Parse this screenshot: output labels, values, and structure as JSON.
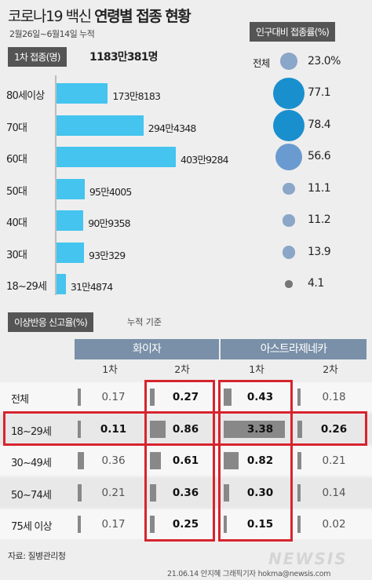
{
  "header": {
    "title_prefix": "코로나19 백신",
    "title_bold": "연령별 접종 현황",
    "period": "2월26일~6월14일 누적"
  },
  "dose1": {
    "label": "1차 접종(명)",
    "total": "1183만381명"
  },
  "rate": {
    "label": "인구대비 접종률(%)",
    "total_label": "전체",
    "total_value": "23.0%"
  },
  "reaction": {
    "label": "이상반응 신고율(%)",
    "note": "누적 기준",
    "vaccines": [
      "화이자",
      "아스트라제네카"
    ],
    "doses": [
      "1차",
      "2차",
      "1차",
      "2차"
    ]
  },
  "footer": {
    "source": "자료: 질병관리청",
    "credit": "21.06.14 안지혜 그래픽기자 hokma@newsis.com",
    "watermark": "NEWSIS"
  },
  "colors": {
    "bar": "#44c4ee",
    "dot_large": "#1a8fcd",
    "dot_mid": "#6a9bd0",
    "dot_small": "#8aa6c8",
    "dot_tiny": "#777777",
    "highlight_box": "#d6242e",
    "table_header": "#7a8fa8"
  },
  "chart_data": [
    {
      "type": "bar",
      "title": "1차 접종(명)",
      "categories": [
        "80세이상",
        "70대",
        "60대",
        "50대",
        "40대",
        "30대",
        "18~29세"
      ],
      "values": [
        1738183,
        2944348,
        4039284,
        954005,
        909358,
        930329,
        314874
      ],
      "value_labels": [
        "173만8183",
        "294만4348",
        "403만9284",
        "95만4005",
        "90만9358",
        "93만329",
        "31만4874"
      ]
    },
    {
      "type": "scatter",
      "title": "인구대비 접종률(%)",
      "categories": [
        "전체",
        "80세이상",
        "70대",
        "60대",
        "50대",
        "40대",
        "30대",
        "18~29세"
      ],
      "values": [
        23.0,
        77.1,
        78.4,
        56.6,
        11.1,
        11.2,
        13.9,
        4.1
      ],
      "value_labels": [
        "23.0%",
        "77.1",
        "78.4",
        "56.6",
        "11.1",
        "11.2",
        "13.9",
        "4.1"
      ]
    },
    {
      "type": "table",
      "title": "이상반응 신고율(%)",
      "columns": [
        "화이자 1차",
        "화이자 2차",
        "아스트라제네카 1차",
        "아스트라제네카 2차"
      ],
      "rows": [
        {
          "label": "전체",
          "values": [
            0.17,
            0.27,
            0.43,
            0.18
          ],
          "labels": [
            "0.17",
            "0.27",
            "0.43",
            "0.18"
          ]
        },
        {
          "label": "18~29세",
          "values": [
            0.11,
            0.86,
            3.38,
            0.26
          ],
          "labels": [
            "0.11",
            "0.86",
            "3.38",
            "0.26"
          ]
        },
        {
          "label": "30~49세",
          "values": [
            0.36,
            0.61,
            0.82,
            0.21
          ],
          "labels": [
            "0.36",
            "0.61",
            "0.82",
            "0.21"
          ]
        },
        {
          "label": "50~74세",
          "values": [
            0.21,
            0.36,
            0.3,
            0.14
          ],
          "labels": [
            "0.21",
            "0.36",
            "0.30",
            "0.14"
          ]
        },
        {
          "label": "75세 이상",
          "values": [
            0.17,
            0.25,
            0.15,
            0.02
          ],
          "labels": [
            "0.17",
            "0.25",
            "0.15",
            "0.02"
          ]
        }
      ]
    }
  ]
}
